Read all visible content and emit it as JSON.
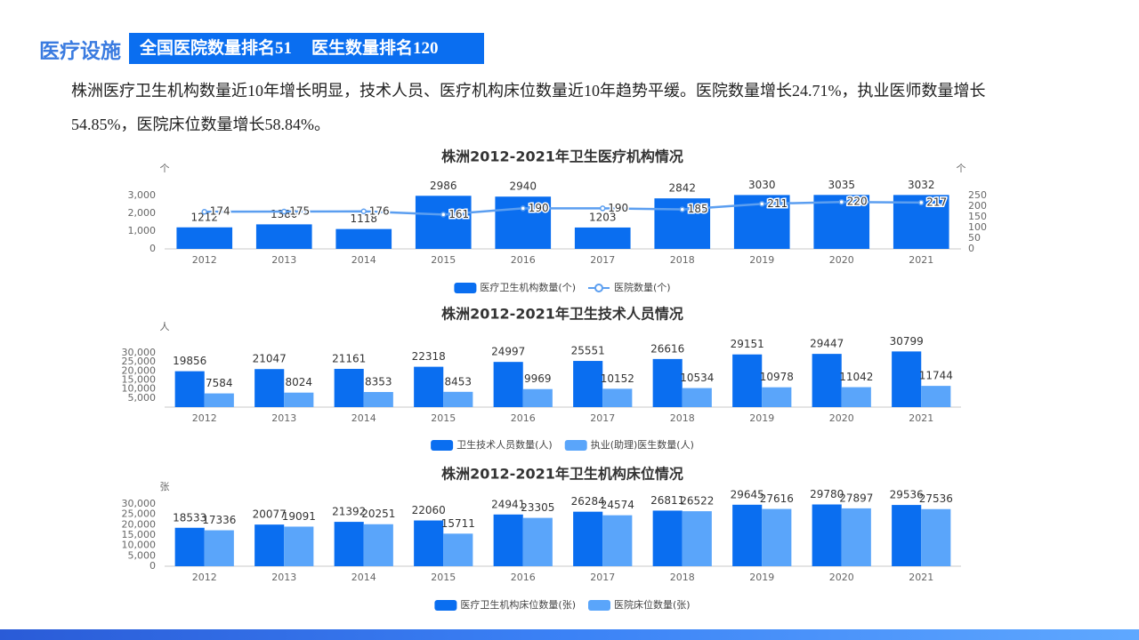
{
  "header": {
    "title": "医疗设施",
    "badge": [
      "全国医院数量排名51",
      "医生数量排名120"
    ]
  },
  "paragraph": "株洲医疗卫生机构数量近10年增长明显，技术人员、医疗机构床位数量近10年趋势平缓。医院数量增长24.71%，执业医师数量增长54.85%，医院床位数量增长58.84%。",
  "chart_data": [
    {
      "type": "combo",
      "title": "株洲2012-2021年卫生医疗机构情况",
      "y_unit": "个",
      "y2_unit": "个",
      "categories": [
        "2012",
        "2013",
        "2014",
        "2015",
        "2016",
        "2017",
        "2018",
        "2019",
        "2020",
        "2021"
      ],
      "series": [
        {
          "name": "医疗卫生机构数量(个)",
          "color": "#0a6ef0",
          "values": [
            1212,
            1380,
            1118,
            2986,
            2940,
            1203,
            2842,
            3030,
            3035,
            3032
          ]
        },
        {
          "name": "医院数量(个)",
          "color": "#5b9ef0",
          "axis": "y2",
          "values": [
            174,
            175,
            176,
            161,
            190,
            190,
            185,
            211,
            220,
            217
          ]
        }
      ],
      "ylim": [
        0,
        3000
      ],
      "yticks": [
        0,
        {
          "value": 1000,
          "label": "1,000"
        },
        {
          "value": 2000,
          "label": "2,000"
        },
        {
          "value": 3000,
          "label": "3,000"
        }
      ],
      "y2lim": [
        0,
        250
      ],
      "y2ticks": [
        0,
        50,
        100,
        150,
        200,
        250
      ],
      "legend": "bottom"
    },
    {
      "type": "bar",
      "title": "株洲2012-2021年卫生技术人员情况",
      "y_unit": "人",
      "categories": [
        "2012",
        "2013",
        "2014",
        "2015",
        "2016",
        "2017",
        "2018",
        "2019",
        "2020",
        "2021"
      ],
      "series": [
        {
          "name": "卫生技术人员数量(人)",
          "color": "#0a6ef0",
          "values": [
            19856,
            21047,
            21161,
            22318,
            24997,
            25551,
            26616,
            29151,
            29447,
            30799
          ]
        },
        {
          "name": "执业(助理)医生数量(人)",
          "color": "#5aa5fa",
          "values": [
            7584,
            8024,
            8353,
            8453,
            9969,
            10152,
            10534,
            10978,
            11042,
            11744
          ]
        }
      ],
      "ylim": [
        0,
        30000
      ],
      "yticks": [
        {
          "value": 5000,
          "label": "5,000"
        },
        {
          "value": 10000,
          "label": "10,000"
        },
        {
          "value": 15000,
          "label": "15,000"
        },
        {
          "value": 20000,
          "label": "20,000"
        },
        {
          "value": 25000,
          "label": "25,000"
        },
        {
          "value": 30000,
          "label": "30,000"
        }
      ],
      "legend": "bottom"
    },
    {
      "type": "bar",
      "title": "株洲2012-2021年卫生机构床位情况",
      "y_unit": "张",
      "categories": [
        "2012",
        "2013",
        "2014",
        "2015",
        "2016",
        "2017",
        "2018",
        "2019",
        "2020",
        "2021"
      ],
      "series": [
        {
          "name": "医疗卫生机构床位数量(张)",
          "color": "#0a6ef0",
          "values": [
            18533,
            20077,
            21392,
            22060,
            24941,
            26284,
            26811,
            29645,
            29780,
            29536
          ]
        },
        {
          "name": "医院床位数量(张)",
          "color": "#5aa5fa",
          "values": [
            17336,
            19091,
            20251,
            15711,
            23305,
            24574,
            26522,
            27616,
            27897,
            27536
          ]
        }
      ],
      "ylim": [
        0,
        30000
      ],
      "yticks": [
        0,
        {
          "value": 5000,
          "label": "5,000"
        },
        {
          "value": 10000,
          "label": "10,000"
        },
        {
          "value": 15000,
          "label": "15,000"
        },
        {
          "value": 20000,
          "label": "20,000"
        },
        {
          "value": 25000,
          "label": "25,000"
        },
        {
          "value": 30000,
          "label": "30,000"
        }
      ],
      "legend": "bottom"
    }
  ]
}
